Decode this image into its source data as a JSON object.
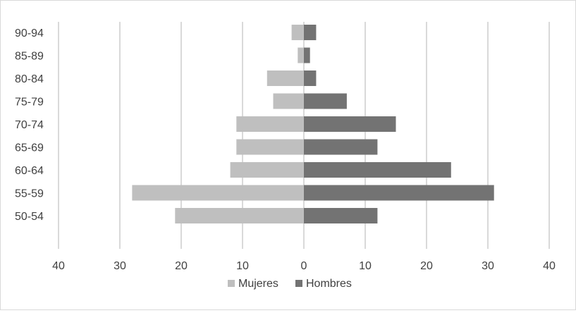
{
  "chart_data": {
    "type": "bar",
    "orientation": "horizontal",
    "style": "population-pyramid",
    "categories": [
      "90-94",
      "85-89",
      "80-84",
      "75-79",
      "70-74",
      "65-69",
      "60-64",
      "55-59",
      "50-54"
    ],
    "series": [
      {
        "name": "Mujeres",
        "side": "left",
        "color": "#bfbfbf",
        "values": [
          2,
          1,
          6,
          5,
          11,
          11,
          12,
          28,
          21
        ]
      },
      {
        "name": "Hombres",
        "side": "right",
        "color": "#737373",
        "values": [
          2,
          1,
          2,
          7,
          15,
          12,
          24,
          31,
          12
        ]
      }
    ],
    "xticks": [
      "40",
      "30",
      "20",
      "10",
      "0",
      "10",
      "20",
      "30",
      "40"
    ],
    "xlim": [
      -40,
      40
    ],
    "grid": "vertical",
    "legend": "bottom",
    "title": "",
    "xlabel": "",
    "ylabel": ""
  }
}
